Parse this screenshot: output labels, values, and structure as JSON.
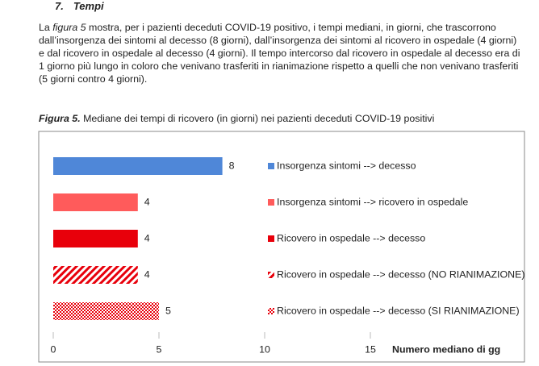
{
  "heading": {
    "number": "7.",
    "title": "Tempi"
  },
  "paragraph": [
    "La ",
    "figura 5",
    " mostra, per i pazienti deceduti COVID-19  positivo, i tempi mediani, in giorni, che trascorrono dall’insorgenza dei sintomi al decesso (8 giorni), dall’insorgenza dei sintomi al ricovero in ospedale (4 giorni) e dal ricovero in ospedale al decesso (4 giorni). Il tempo intercorso dal ricovero in ospedale al decesso era di 1 giorno più lungo in coloro che venivano trasferiti in rianimazione rispetto a quelli che non venivano trasferiti (5 giorni contro 4 giorni)."
  ],
  "figure_caption": {
    "label": "Figura 5.",
    "text": " Mediane dei tempi di ricovero (in giorni) nei pazienti deceduti COVID-19 positivi"
  },
  "chart_data": {
    "type": "bar",
    "orientation": "horizontal",
    "categories": [
      "Insorgenza sintomi --> decesso",
      "Insorgenza sintomi --> ricovero in ospedale",
      "Ricovero in ospedale --> decesso",
      "Ricovero in ospedale --> decesso (NO RIANIMAZIONE)",
      "Ricovero in ospedale --> decesso (SI RIANIMAZIONE)"
    ],
    "values": [
      8,
      4,
      4,
      4,
      5
    ],
    "colors": [
      "#4f87d8",
      "#ff5b5b",
      "#e8000b",
      "#e8000b",
      "#e8000b"
    ],
    "fills": [
      "solid",
      "solid",
      "solid",
      "hatch",
      "check"
    ],
    "xlim": [
      0,
      15
    ],
    "xticks": [
      0,
      5,
      10,
      15
    ],
    "xlabel": "Numero mediano di gg"
  }
}
